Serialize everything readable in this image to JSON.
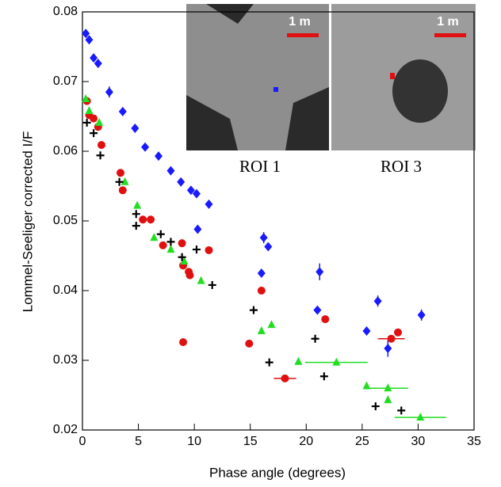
{
  "chart_data": {
    "type": "scatter",
    "xlabel": "Phase angle (degrees)",
    "ylabel": "Lommel-Seeliger corrected I/F",
    "xlim": [
      0,
      35
    ],
    "xticks": [
      0,
      5,
      10,
      15,
      20,
      25,
      30,
      35
    ],
    "ylim": [
      0.02,
      0.08
    ],
    "yticks": [
      0.02,
      0.03,
      0.04,
      0.05,
      0.06,
      0.07,
      0.08
    ],
    "insets": [
      {
        "label": "ROI 1",
        "scale": "1 m"
      },
      {
        "label": "ROI 3",
        "scale": "1 m"
      }
    ],
    "series": [
      {
        "color": "#1a1aff",
        "marker": "diamond",
        "x": [
          0.3,
          0.6,
          1.0,
          1.4,
          2.4,
          3.6,
          4.7,
          5.6,
          6.8,
          7.9,
          8.8,
          9.7,
          10.2,
          11.3,
          10.3,
          16.2,
          16.6,
          16.0,
          21.2,
          21.0,
          26.4,
          25.4,
          27.3,
          30.3
        ],
        "values": [
          0.0769,
          0.076,
          0.0734,
          0.0726,
          0.0685,
          0.0657,
          0.0633,
          0.0606,
          0.0593,
          0.0572,
          0.0556,
          0.0544,
          0.0539,
          0.0524,
          0.0488,
          0.0476,
          0.0463,
          0.0425,
          0.0427,
          0.0372,
          0.0385,
          0.0342,
          0.0317,
          0.0365
        ],
        "yerr": [
          null,
          null,
          null,
          null,
          0.0008,
          null,
          null,
          null,
          null,
          null,
          null,
          null,
          null,
          null,
          null,
          0.0008,
          null,
          null,
          0.0012,
          null,
          0.0008,
          null,
          0.0012,
          0.0008
        ]
      },
      {
        "color": "#e01010",
        "marker": "circle",
        "x": [
          0.4,
          0.6,
          1.0,
          1.4,
          1.7,
          3.4,
          3.6,
          5.4,
          6.1,
          7.2,
          8.9,
          9.0,
          9.5,
          9.6,
          11.3,
          9.0,
          16.0,
          14.9,
          18.1,
          21.7,
          27.6,
          28.2
        ],
        "values": [
          0.0672,
          0.0652,
          0.0647,
          0.0635,
          0.0609,
          0.0569,
          0.0544,
          0.0502,
          0.0502,
          0.0465,
          0.0468,
          0.0436,
          0.0427,
          0.0422,
          0.0458,
          0.0326,
          0.04,
          0.0324,
          0.0274,
          0.0359,
          0.0331,
          0.034
        ],
        "xerr": [
          null,
          null,
          null,
          null,
          null,
          null,
          null,
          null,
          null,
          null,
          null,
          null,
          null,
          null,
          null,
          null,
          null,
          null,
          1.0,
          null,
          1.2,
          null
        ]
      },
      {
        "color": "#22dd22",
        "marker": "triangle",
        "x": [
          0.3,
          0.6,
          1.5,
          3.8,
          4.9,
          6.4,
          7.9,
          9.1,
          10.6,
          16.0,
          16.9,
          19.3,
          22.7,
          25.4,
          27.3,
          27.3,
          30.2
        ],
        "values": [
          0.0675,
          0.0658,
          0.0641,
          0.0556,
          0.0522,
          0.0476,
          0.0459,
          0.0442,
          0.0414,
          0.0342,
          0.0351,
          0.0298,
          0.0297,
          0.0263,
          0.026,
          0.0243,
          0.0218
        ],
        "xerr": [
          null,
          null,
          null,
          null,
          null,
          null,
          null,
          null,
          null,
          null,
          null,
          null,
          2.8,
          null,
          1.8,
          null,
          2.3
        ]
      },
      {
        "color": "#000000",
        "marker": "plus",
        "x": [
          0.4,
          1.0,
          1.6,
          3.3,
          4.8,
          4.8,
          7.0,
          7.9,
          8.9,
          10.2,
          11.6,
          15.3,
          16.7,
          20.8,
          21.6,
          26.2,
          28.5
        ],
        "values": [
          0.0641,
          0.0626,
          0.0594,
          0.0556,
          0.051,
          0.0493,
          0.0481,
          0.047,
          0.0448,
          0.0459,
          0.0408,
          0.0372,
          0.0297,
          0.0331,
          0.0277,
          0.0234,
          0.0228
        ]
      }
    ]
  }
}
